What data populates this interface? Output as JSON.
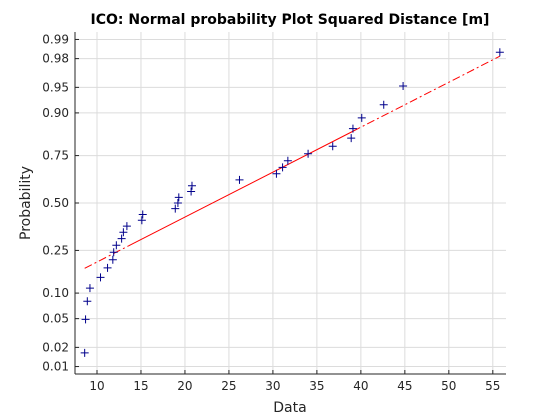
{
  "chart_data": {
    "type": "scatter",
    "title": "ICO: Normal probability Plot Squared Distance [m]",
    "xlabel": "Data",
    "ylabel": "Probability",
    "xlim": [
      7.5,
      56.5
    ],
    "x_ticks": [
      10,
      15,
      20,
      25,
      30,
      35,
      40,
      45,
      50,
      55
    ],
    "y_scale": "normal-probability",
    "y_ticks": [
      {
        "p": 0.01,
        "label": "0.01"
      },
      {
        "p": 0.02,
        "label": "0.02"
      },
      {
        "p": 0.05,
        "label": "0.05"
      },
      {
        "p": 0.1,
        "label": "0.10"
      },
      {
        "p": 0.25,
        "label": "0.25"
      },
      {
        "p": 0.5,
        "label": "0.50"
      },
      {
        "p": 0.75,
        "label": "0.75"
      },
      {
        "p": 0.9,
        "label": "0.90"
      },
      {
        "p": 0.95,
        "label": "0.95"
      },
      {
        "p": 0.98,
        "label": "0.98"
      },
      {
        "p": 0.99,
        "label": "0.99"
      }
    ],
    "grid": true,
    "series": [
      {
        "type": "scatter",
        "marker": "+",
        "color": "#00008b",
        "points": [
          {
            "x": 8.6,
            "p": 0.0165
          },
          {
            "x": 8.7,
            "p": 0.049
          },
          {
            "x": 8.9,
            "p": 0.081
          },
          {
            "x": 9.2,
            "p": 0.113
          },
          {
            "x": 10.4,
            "p": 0.145
          },
          {
            "x": 11.2,
            "p": 0.178
          },
          {
            "x": 11.8,
            "p": 0.21
          },
          {
            "x": 11.9,
            "p": 0.242
          },
          {
            "x": 12.2,
            "p": 0.274
          },
          {
            "x": 12.8,
            "p": 0.306
          },
          {
            "x": 13.0,
            "p": 0.339
          },
          {
            "x": 13.4,
            "p": 0.371
          },
          {
            "x": 15.1,
            "p": 0.403
          },
          {
            "x": 15.2,
            "p": 0.435
          },
          {
            "x": 18.9,
            "p": 0.468
          },
          {
            "x": 19.2,
            "p": 0.5
          },
          {
            "x": 19.3,
            "p": 0.532
          },
          {
            "x": 20.7,
            "p": 0.565
          },
          {
            "x": 20.8,
            "p": 0.597
          },
          {
            "x": 26.2,
            "p": 0.629
          },
          {
            "x": 30.4,
            "p": 0.661
          },
          {
            "x": 31.1,
            "p": 0.694
          },
          {
            "x": 31.7,
            "p": 0.726
          },
          {
            "x": 34.0,
            "p": 0.758
          },
          {
            "x": 36.8,
            "p": 0.79
          },
          {
            "x": 38.9,
            "p": 0.822
          },
          {
            "x": 39.1,
            "p": 0.855
          },
          {
            "x": 40.1,
            "p": 0.887
          },
          {
            "x": 42.6,
            "p": 0.919
          },
          {
            "x": 44.8,
            "p": 0.952
          },
          {
            "x": 55.8,
            "p": 0.984
          }
        ]
      },
      {
        "type": "line",
        "style": "dash-dot",
        "color": "#ff0000",
        "solid_between_x": [
          13.6,
          39.1
        ],
        "points": [
          {
            "x": 8.6,
            "p": 0.1765
          },
          {
            "x": 55.8,
            "p": 0.9816
          }
        ]
      }
    ]
  }
}
